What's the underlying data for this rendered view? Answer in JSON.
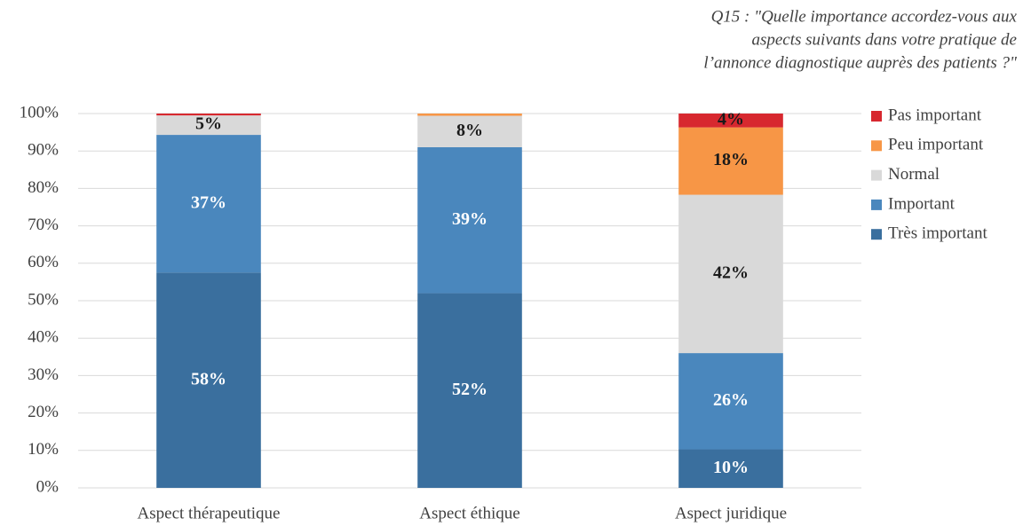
{
  "chart_data": {
    "type": "stacked_bar",
    "title": [
      "Q15 : \"Quelle importance accordez-vous aux",
      "aspects suivants dans votre pratique de",
      "l’annonce diagnostique auprès des patients ?\""
    ],
    "categories": [
      "Aspect thérapeutique",
      "Aspect éthique",
      "Aspect juridique"
    ],
    "series": [
      {
        "name": "Très important",
        "color": "#3a6f9e",
        "label_color": "#ffffff",
        "values": [
          57.5,
          52,
          10.3
        ],
        "value_labels": [
          "58%",
          "52%",
          "10%"
        ]
      },
      {
        "name": "Important",
        "color": "#4a87bd",
        "label_color": "#ffffff",
        "values": [
          36.8,
          39,
          25.7
        ],
        "value_labels": [
          "37%",
          "39%",
          "26%"
        ]
      },
      {
        "name": "Normal",
        "color": "#d9d9d9",
        "label_color": "#1a1a1a",
        "values": [
          5.2,
          8.4,
          42.3
        ],
        "value_labels": [
          "5%",
          "8%",
          "42%"
        ]
      },
      {
        "name": "Peu important",
        "color": "#f79646",
        "label_color": "#1a1a1a",
        "values": [
          0,
          0.6,
          18
        ],
        "value_labels": [
          null,
          null,
          "18%"
        ]
      },
      {
        "name": "Pas important",
        "color": "#d7282f",
        "label_color": "#1a1a1a",
        "values": [
          0.5,
          0,
          3.7
        ],
        "value_labels": [
          null,
          null,
          "4%"
        ]
      }
    ],
    "ylim": [
      0,
      100
    ],
    "yticks": [
      {
        "value": 0,
        "label": "0%"
      },
      {
        "value": 10,
        "label": "10%"
      },
      {
        "value": 20,
        "label": "20%"
      },
      {
        "value": 30,
        "label": "30%"
      },
      {
        "value": 40,
        "label": "40%"
      },
      {
        "value": 50,
        "label": "50%"
      },
      {
        "value": 60,
        "label": "60%"
      },
      {
        "value": 70,
        "label": "70%"
      },
      {
        "value": 80,
        "label": "80%"
      },
      {
        "value": 90,
        "label": "90%"
      },
      {
        "value": 100,
        "label": "100%"
      }
    ],
    "grid": true,
    "legend": "right"
  }
}
